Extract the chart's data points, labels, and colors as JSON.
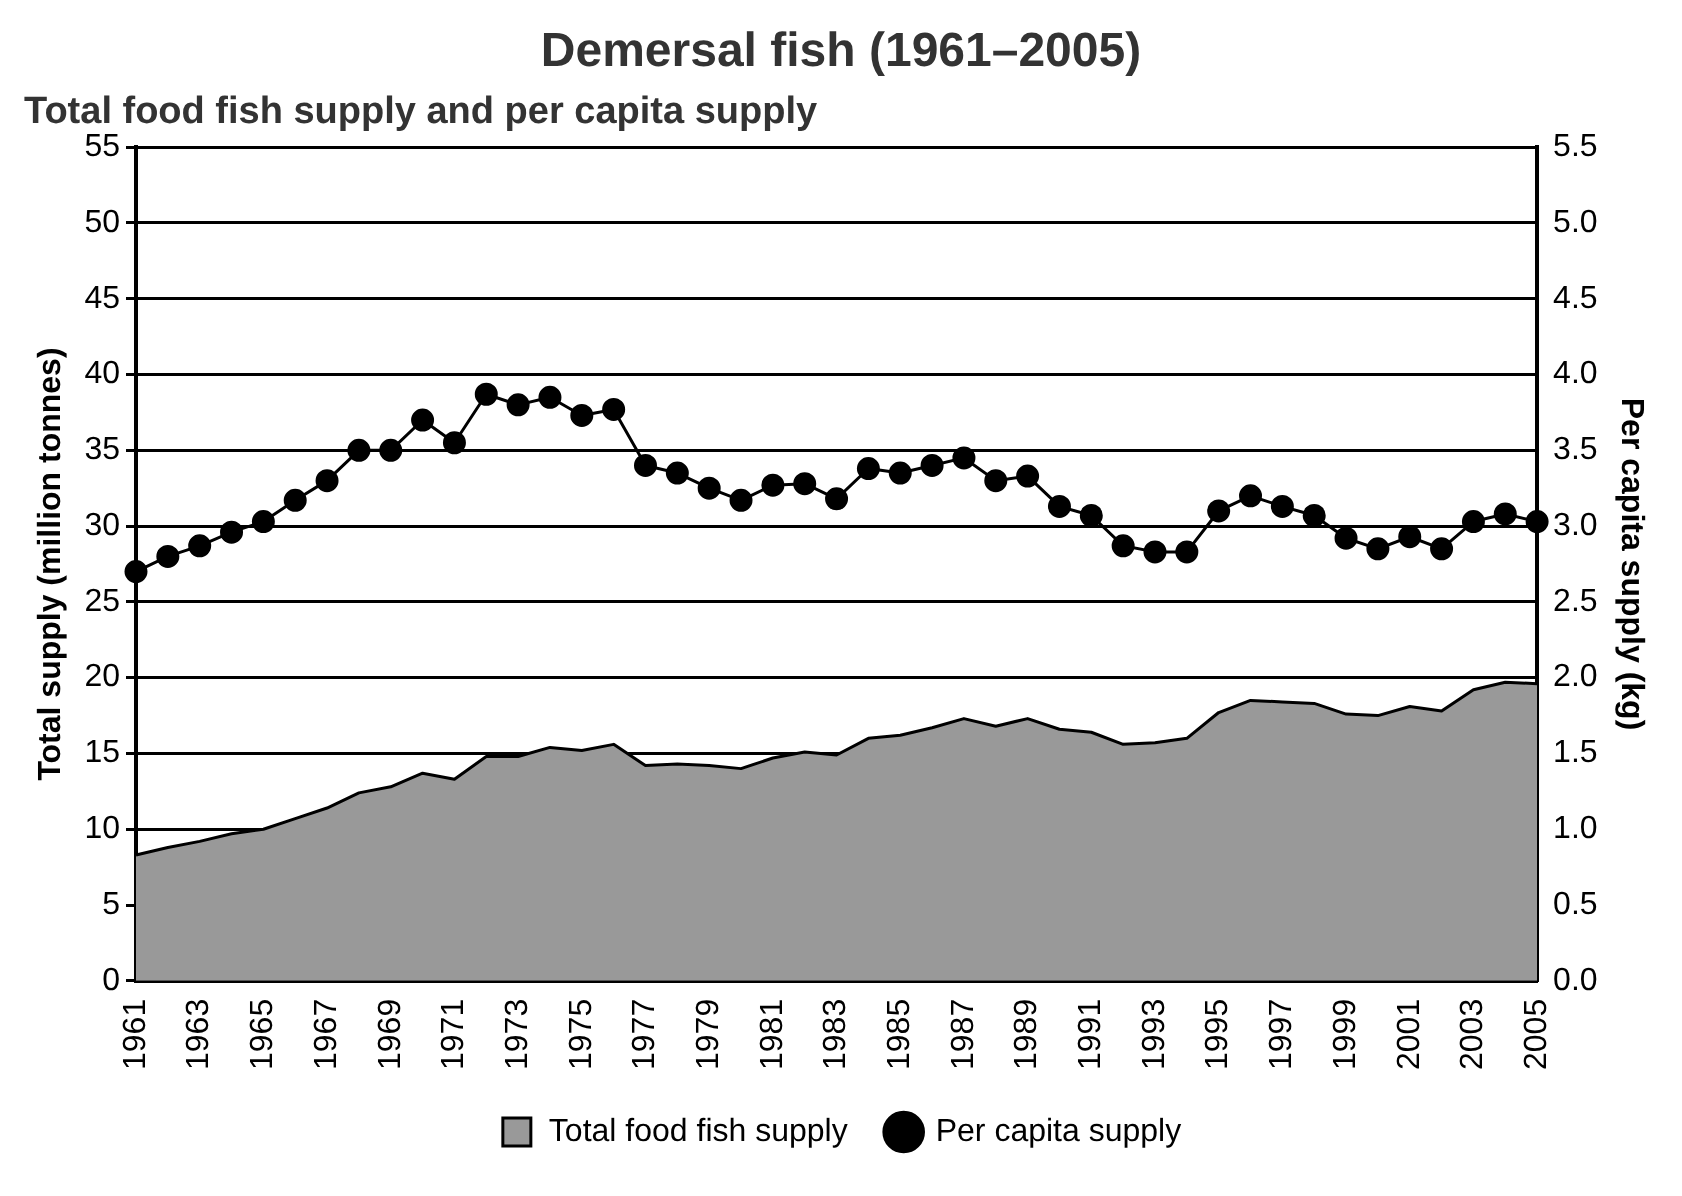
{
  "chart_data": {
    "type": "area",
    "title": "Demersal fish (1961–2005)",
    "subtitle": "Total food fish supply and per capita supply",
    "ylabel": "Total supply (million tonnes)",
    "y2label": "Per capita supply (kg)",
    "categories": [
      "1961",
      null,
      "1963",
      null,
      "1965",
      null,
      "1967",
      null,
      "1969",
      null,
      "1971",
      null,
      "1973",
      null,
      "1975",
      null,
      "1977",
      null,
      "1979",
      null,
      "1981",
      null,
      "1983",
      null,
      "1985",
      null,
      "1987",
      null,
      "1989",
      null,
      "1991",
      null,
      "1993",
      null,
      "1995",
      null,
      "1997",
      null,
      "1999",
      null,
      "2001",
      null,
      "2003",
      null,
      "2005"
    ],
    "series": [
      {
        "name": "Total food fish supply",
        "color": "#999999",
        "values": [
          8.3,
          8.8,
          9.2,
          9.7,
          10.0,
          10.7,
          11.4,
          12.4,
          12.8,
          13.7,
          13.3,
          14.8,
          14.8,
          15.4,
          15.2,
          15.6,
          14.2,
          14.3,
          14.2,
          14.0,
          14.7,
          15.1,
          14.9,
          16.0,
          16.2,
          16.7,
          17.3,
          16.8,
          17.3,
          16.6,
          16.4,
          15.6,
          15.7,
          16.0,
          17.7,
          18.5,
          18.4,
          18.3,
          17.6,
          17.5,
          18.1,
          17.8,
          19.2,
          19.7,
          19.6
        ]
      },
      {
        "name": "Per capita supply",
        "type": "line",
        "axis": "y2",
        "color": "#000000",
        "marker": "circle",
        "values": [
          2.7,
          2.8,
          2.87,
          2.96,
          3.03,
          3.17,
          3.3,
          3.5,
          3.5,
          3.7,
          3.55,
          3.87,
          3.8,
          3.85,
          3.73,
          3.77,
          3.4,
          3.35,
          3.25,
          3.17,
          3.27,
          3.28,
          3.18,
          3.38,
          3.35,
          3.4,
          3.45,
          3.3,
          3.33,
          3.13,
          3.07,
          2.87,
          2.83,
          2.83,
          3.1,
          3.2,
          3.13,
          3.07,
          2.92,
          2.85,
          2.93,
          2.85,
          3.03,
          3.08,
          3.03
        ]
      }
    ],
    "ylim": [
      0,
      55
    ],
    "yticks": [
      0,
      5,
      10,
      15,
      20,
      25,
      30,
      35,
      40,
      45,
      50,
      55
    ],
    "y2lim": [
      0,
      5.5
    ],
    "y2ticks": [
      {
        "value": 0,
        "label": "0.0"
      },
      {
        "value": 0.5,
        "label": "0.5"
      },
      {
        "value": 1,
        "label": "1.0"
      },
      {
        "value": 1.5,
        "label": "1.5"
      },
      {
        "value": 2,
        "label": "2.0"
      },
      {
        "value": 2.5,
        "label": "2.5"
      },
      {
        "value": 3,
        "label": "3.0"
      },
      {
        "value": 3.5,
        "label": "3.5"
      },
      {
        "value": 4,
        "label": "4.0"
      },
      {
        "value": 4.5,
        "label": "4.5"
      },
      {
        "value": 5,
        "label": "5.0"
      },
      {
        "value": 5.5,
        "label": "5.5"
      }
    ],
    "grid": "y",
    "legend": "bottom"
  }
}
